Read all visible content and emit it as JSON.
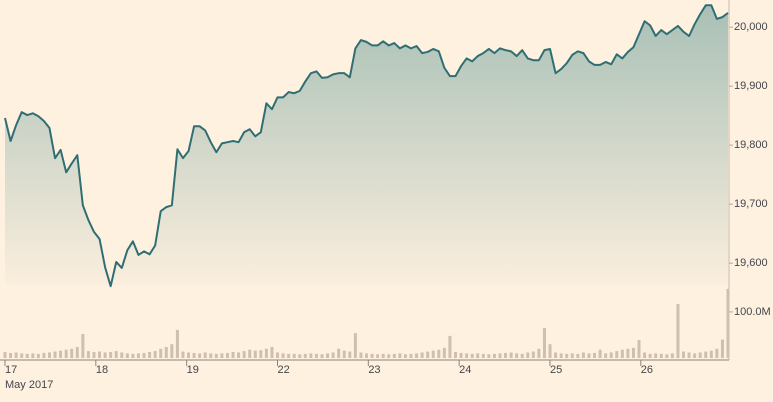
{
  "chart_data": {
    "type": "line",
    "xlabel": "May 2017",
    "xlim": [
      0,
      7.96
    ],
    "xticks": [
      {
        "value": 0,
        "label": "17"
      },
      {
        "value": 1,
        "label": "18"
      },
      {
        "value": 2,
        "label": "19"
      },
      {
        "value": 3,
        "label": "22"
      },
      {
        "value": 4,
        "label": "23"
      },
      {
        "value": 5,
        "label": "24"
      },
      {
        "value": 6,
        "label": "25"
      },
      {
        "value": 7,
        "label": "26"
      }
    ],
    "ylim": [
      19563,
      20046
    ],
    "yticks": [
      {
        "value": 19600,
        "label": "19,600"
      },
      {
        "value": 19700,
        "label": "19,700"
      },
      {
        "value": 19800,
        "label": "19,800"
      },
      {
        "value": 19900,
        "label": "19,900"
      },
      {
        "value": 20000,
        "label": "20,000"
      }
    ],
    "y2lim": [
      0,
      154000000
    ],
    "y2ticks": [
      {
        "value": 100000000,
        "label": "100.0M"
      }
    ],
    "grid": false,
    "series": [
      {
        "type": "line",
        "color": "#2f6f73",
        "fill": "#a9c0b6",
        "values": [
          19846,
          19807,
          19834,
          19856,
          19851,
          19854,
          19849,
          19841,
          19829,
          19778,
          19792,
          19754,
          19769,
          19783,
          19698,
          19673,
          19653,
          19641,
          19593,
          19561,
          19602,
          19592,
          19622,
          19637,
          19614,
          19620,
          19615,
          19630,
          19688,
          19695,
          19698,
          19793,
          19778,
          19790,
          19832,
          19832,
          19825,
          19805,
          19788,
          19803,
          19805,
          19807,
          19805,
          19822,
          19827,
          19815,
          19822,
          19871,
          19861,
          19881,
          19881,
          19890,
          19888,
          19892,
          19908,
          19922,
          19925,
          19914,
          19915,
          19920,
          19922,
          19922,
          19915,
          19964,
          19978,
          19975,
          19969,
          19969,
          19976,
          19969,
          19973,
          19964,
          19969,
          19964,
          19968,
          19956,
          19958,
          19963,
          19959,
          19931,
          19917,
          19917,
          19934,
          19947,
          19942,
          19951,
          19956,
          19963,
          19956,
          19964,
          19961,
          19959,
          19951,
          19961,
          19947,
          19944,
          19944,
          19961,
          19963,
          19922,
          19929,
          19939,
          19953,
          19959,
          19956,
          19942,
          19936,
          19936,
          19941,
          19937,
          19954,
          19947,
          19958,
          19966,
          19988,
          20010,
          20003,
          19985,
          19995,
          19988,
          19995,
          20002,
          19992,
          19985,
          20005,
          20022,
          20037,
          20037,
          20014,
          20017,
          20024
        ]
      },
      {
        "type": "bar",
        "axis": "y2",
        "color": "#cfbfae",
        "values": [
          13000000,
          11000000,
          12000000,
          10000000,
          9000000,
          10000000,
          9000000,
          11000000,
          12000000,
          14000000,
          16000000,
          18000000,
          20000000,
          24000000,
          52000000,
          15000000,
          13000000,
          14000000,
          12000000,
          13000000,
          15000000,
          12000000,
          10000000,
          9000000,
          10000000,
          11000000,
          13000000,
          15000000,
          20000000,
          24000000,
          30000000,
          61000000,
          14000000,
          12000000,
          11000000,
          10000000,
          12000000,
          10000000,
          9000000,
          10000000,
          11000000,
          13000000,
          12000000,
          15000000,
          18000000,
          16000000,
          17000000,
          20000000,
          24000000,
          12000000,
          10000000,
          9000000,
          9000000,
          8000000,
          9000000,
          10000000,
          9000000,
          8000000,
          10000000,
          12000000,
          20000000,
          16000000,
          14000000,
          54000000,
          12000000,
          10000000,
          9000000,
          8000000,
          9000000,
          8000000,
          9000000,
          10000000,
          8000000,
          9000000,
          10000000,
          12000000,
          14000000,
          16000000,
          18000000,
          22000000,
          48000000,
          13000000,
          11000000,
          10000000,
          9000000,
          10000000,
          9000000,
          8000000,
          9000000,
          10000000,
          11000000,
          12000000,
          10000000,
          9000000,
          12000000,
          14000000,
          20000000,
          65000000,
          30000000,
          12000000,
          10000000,
          9000000,
          10000000,
          9000000,
          12000000,
          10000000,
          11000000,
          18000000,
          10000000,
          12000000,
          15000000,
          18000000,
          20000000,
          22000000,
          39000000,
          12000000,
          9000000,
          10000000,
          9000000,
          8000000,
          10000000,
          117000000,
          14000000,
          12000000,
          10000000,
          12000000,
          14000000,
          16000000,
          20000000,
          40000000,
          150000000
        ]
      }
    ]
  }
}
